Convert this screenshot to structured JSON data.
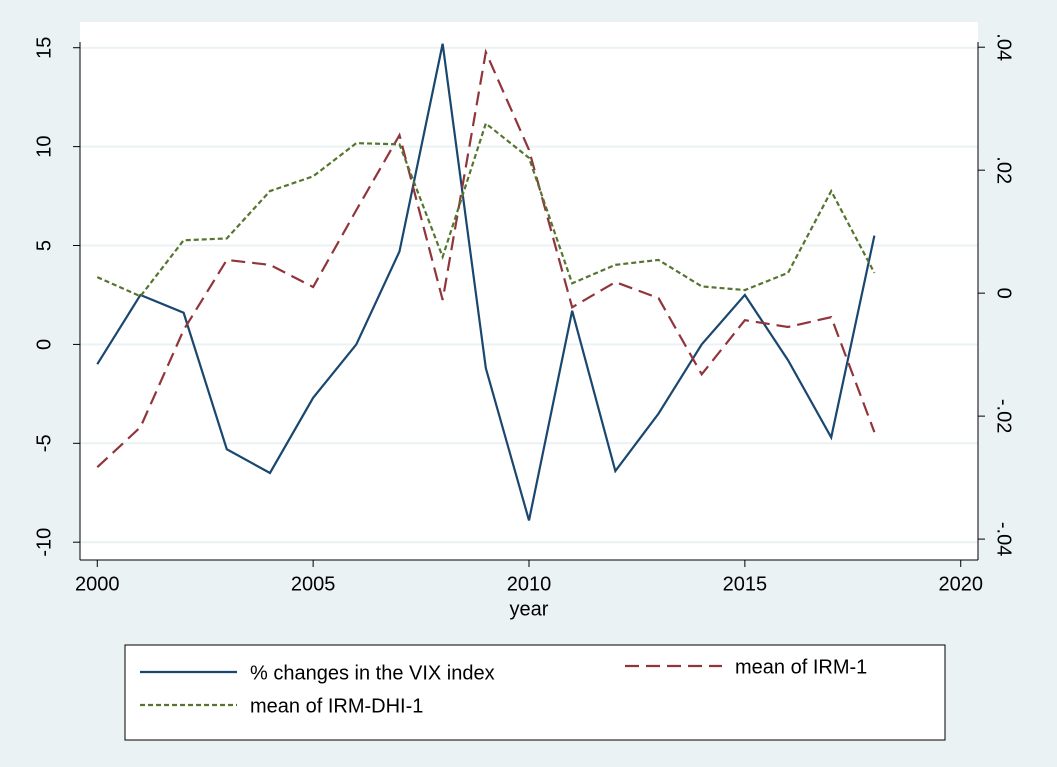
{
  "chart_data": {
    "type": "line",
    "x_label": "year",
    "x": [
      2000,
      2001,
      2002,
      2003,
      2004,
      2005,
      2006,
      2007,
      2008,
      2009,
      2010,
      2011,
      2012,
      2013,
      2014,
      2015,
      2016,
      2017,
      2018
    ],
    "xlim": [
      1999.6,
      2020.4
    ],
    "xticks": [
      2000,
      2005,
      2010,
      2015,
      2020
    ],
    "ylim": [
      -10.9,
      16.3
    ],
    "yticks": [
      -10,
      -5,
      0,
      5,
      10,
      15
    ],
    "y2lim": [
      -0.0434,
      0.0441
    ],
    "y2ticks": [
      {
        "value": -0.04,
        "label": "-.04"
      },
      {
        "value": -0.02,
        "label": "-.02"
      },
      0,
      {
        "value": 0.02,
        "label": ".02"
      },
      {
        "value": 0.04,
        "label": ".04"
      }
    ],
    "grid": true,
    "series": [
      {
        "name": "% changes in the VIX index",
        "color": "#1a476f",
        "style": "solid",
        "values": [
          -1.0,
          2.5,
          1.6,
          -5.3,
          -6.5,
          -2.7,
          0,
          4.7,
          15.2,
          -1.2,
          -8.9,
          1.7,
          -6.4,
          -3.5,
          0,
          2.5,
          -0.8,
          -4.7,
          5.5
        ]
      },
      {
        "name": "mean of IRM-1",
        "color": "#90353b",
        "style": "dash",
        "axis": "y2",
        "values": [
          -0.0283,
          -0.0218,
          -0.006,
          0.0054,
          0.0046,
          0.001,
          0.0135,
          0.0257,
          -0.0011,
          0.0392,
          0.0233,
          -0.0023,
          0.0018,
          -0.0008,
          -0.0132,
          -0.0044,
          -0.0055,
          -0.0039,
          -0.0226
        ]
      },
      {
        "name": "mean of IRM-DHI-1",
        "color": "#55752f",
        "style": "dot",
        "axis": "y2",
        "values": [
          0.0026,
          -0.0005,
          0.0086,
          0.0089,
          0.0166,
          0.019,
          0.0244,
          0.0242,
          0.0059,
          0.0276,
          0.022,
          0.0016,
          0.0046,
          0.0054,
          0.0011,
          0.0005,
          0.0033,
          0.0166,
          0.0033
        ]
      }
    ]
  }
}
